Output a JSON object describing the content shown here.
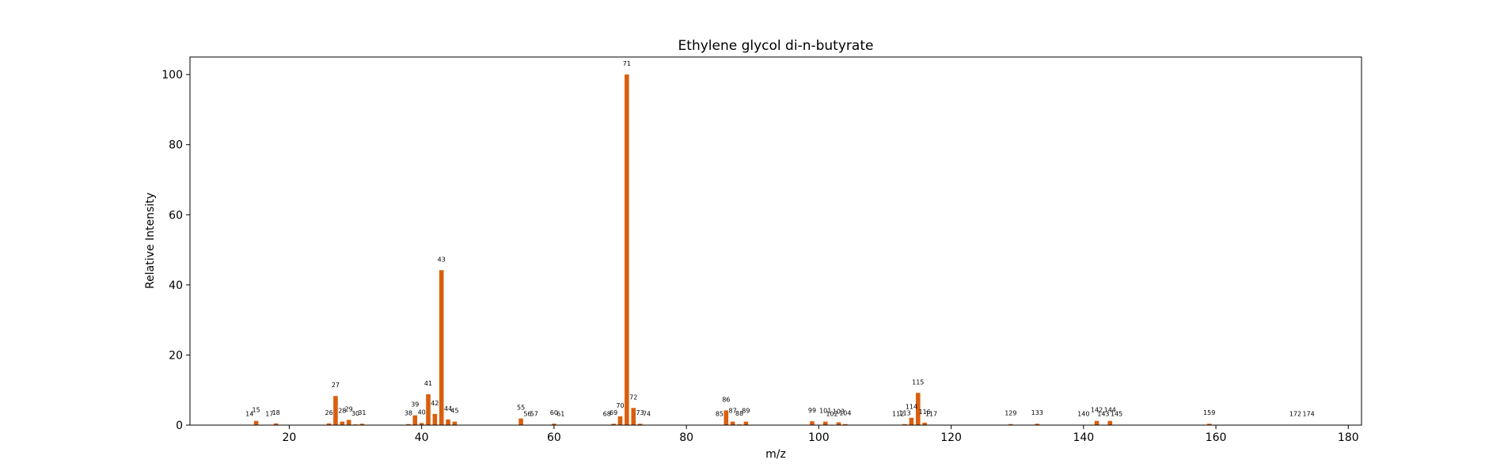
{
  "chart_data": {
    "type": "bar",
    "title": "Ethylene glycol di-n-butyrate",
    "xlabel": "m/z",
    "ylabel": "Relative Intensity",
    "xlim": [
      5,
      182
    ],
    "ylim": [
      0,
      105
    ],
    "xticks": [
      20,
      40,
      60,
      80,
      100,
      120,
      140,
      160,
      180
    ],
    "yticks": [
      0,
      20,
      40,
      60,
      80,
      100
    ],
    "grid": false,
    "bar_color": "#d95f0e",
    "x": [
      14,
      15,
      17,
      18,
      26,
      27,
      28,
      29,
      30,
      31,
      38,
      39,
      40,
      41,
      42,
      43,
      44,
      45,
      55,
      56,
      57,
      60,
      61,
      68,
      69,
      70,
      71,
      72,
      73,
      74,
      85,
      86,
      87,
      88,
      89,
      99,
      101,
      102,
      103,
      104,
      112,
      113,
      114,
      115,
      116,
      117,
      129,
      133,
      140,
      142,
      143,
      144,
      145,
      159,
      172,
      174
    ],
    "values": [
      0.1,
      1.2,
      0.1,
      0.5,
      0.5,
      8.3,
      1.0,
      1.5,
      0.2,
      0.4,
      0.3,
      2.8,
      0.6,
      8.8,
      3.2,
      44.2,
      1.6,
      1.0,
      1.9,
      0.1,
      0.1,
      0.4,
      0.1,
      0.1,
      0.4,
      2.5,
      100.0,
      4.9,
      0.4,
      0.1,
      0.1,
      4.2,
      1.0,
      0.2,
      1.0,
      1.1,
      1.0,
      0.1,
      0.8,
      0.3,
      0.1,
      0.3,
      2.1,
      9.2,
      0.7,
      0.1,
      0.3,
      0.4,
      0.1,
      1.2,
      0.1,
      1.2,
      0.1,
      0.4,
      0.1,
      0.1
    ]
  }
}
